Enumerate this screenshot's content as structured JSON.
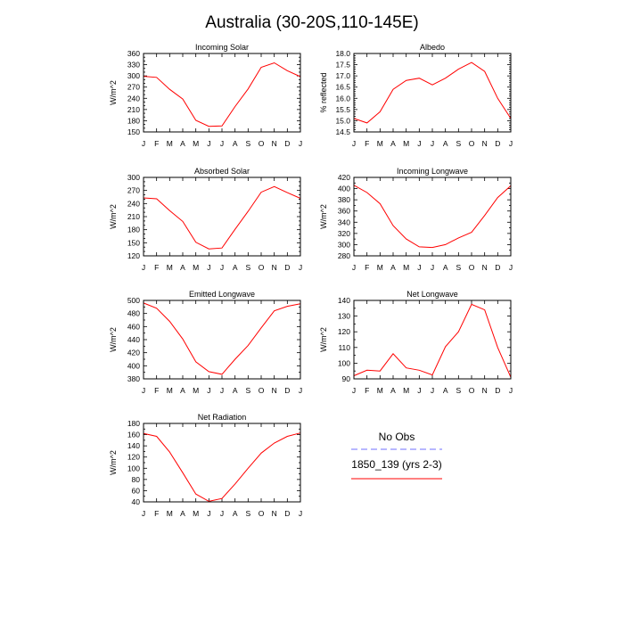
{
  "figure": {
    "title": "Australia (30-20S,110-145E)"
  },
  "colors": {
    "model": "#ff0000",
    "obs": "#6f6fff"
  },
  "legend": {
    "obs_label": "No Obs",
    "model_label": "1850_139 (yrs 2-3)",
    "placement": "bottom-right"
  },
  "chart_data": [
    {
      "type": "line",
      "title": "Incoming Solar",
      "ylabel": "W/m^2",
      "categories": [
        "J",
        "F",
        "M",
        "A",
        "M",
        "J",
        "J",
        "A",
        "S",
        "O",
        "N",
        "D",
        "J"
      ],
      "ylim": [
        150,
        360
      ],
      "yticks": [
        150,
        160,
        170,
        180,
        190,
        200,
        210,
        220,
        230,
        240,
        250,
        260,
        270,
        280,
        290,
        300,
        310,
        320,
        330,
        340,
        350,
        360
      ],
      "ytick_labels": [
        "150",
        "180",
        "210",
        "240",
        "270",
        "300",
        "330",
        "360"
      ],
      "series": [
        {
          "name": "1850_139 (yrs 2-3)",
          "values": [
            299,
            296,
            264,
            238,
            181,
            165,
            166,
            218,
            265,
            323,
            335,
            314,
            298
          ]
        }
      ]
    },
    {
      "type": "line",
      "title": "Albedo",
      "ylabel": "% reflected",
      "categories": [
        "J",
        "F",
        "M",
        "A",
        "M",
        "J",
        "J",
        "A",
        "S",
        "O",
        "N",
        "D",
        "J"
      ],
      "ylim": [
        14.5,
        18.0
      ],
      "yticks": [
        14.5,
        14.6,
        14.7,
        14.8,
        14.9,
        15.0,
        15.1,
        15.2,
        15.3,
        15.4,
        15.5,
        15.6,
        15.7,
        15.8,
        15.9,
        16.0,
        16.1,
        16.2,
        16.3,
        16.4,
        16.5,
        16.6,
        16.7,
        16.8,
        16.9,
        17.0,
        17.1,
        17.2,
        17.3,
        17.4,
        17.5,
        17.6,
        17.7,
        17.8,
        17.9,
        18.0
      ],
      "ytick_labels": [
        "14.5",
        "15.0",
        "15.5",
        "16.0",
        "16.5",
        "17.0",
        "17.5",
        "18.0"
      ],
      "series": [
        {
          "name": "1850_139 (yrs 2-3)",
          "values": [
            15.1,
            14.9,
            15.4,
            16.4,
            16.8,
            16.9,
            16.6,
            16.9,
            17.3,
            17.6,
            17.2,
            16.0,
            15.1
          ]
        }
      ]
    },
    {
      "type": "line",
      "title": "Absorbed Solar",
      "ylabel": "W/m^2",
      "categories": [
        "J",
        "F",
        "M",
        "A",
        "M",
        "J",
        "J",
        "A",
        "S",
        "O",
        "N",
        "D",
        "J"
      ],
      "ylim": [
        120,
        300
      ],
      "yticks": [
        120,
        130,
        140,
        150,
        160,
        170,
        180,
        190,
        200,
        210,
        220,
        230,
        240,
        250,
        260,
        270,
        280,
        290,
        300
      ],
      "ytick_labels": [
        "120",
        "150",
        "180",
        "210",
        "240",
        "270",
        "300"
      ],
      "series": [
        {
          "name": "1850_139 (yrs 2-3)",
          "values": [
            253,
            251,
            224,
            199,
            151,
            136,
            138,
            181,
            222,
            266,
            279,
            265,
            252
          ]
        }
      ]
    },
    {
      "type": "line",
      "title": "Incoming Longwave",
      "ylabel": "W/m^2",
      "categories": [
        "J",
        "F",
        "M",
        "A",
        "M",
        "J",
        "J",
        "A",
        "S",
        "O",
        "N",
        "D",
        "J"
      ],
      "ylim": [
        280,
        420
      ],
      "yticks": [
        280,
        290,
        300,
        310,
        320,
        330,
        340,
        350,
        360,
        370,
        380,
        390,
        400,
        410,
        420
      ],
      "ytick_labels": [
        "280",
        "300",
        "320",
        "340",
        "360",
        "380",
        "400",
        "420"
      ],
      "series": [
        {
          "name": "1850_139 (yrs 2-3)",
          "values": [
            406,
            393,
            373,
            334,
            310,
            296,
            295,
            300,
            312,
            322,
            352,
            384,
            405
          ]
        }
      ]
    },
    {
      "type": "line",
      "title": "Emitted Longwave",
      "ylabel": "W/m^2",
      "categories": [
        "J",
        "F",
        "M",
        "A",
        "M",
        "J",
        "J",
        "A",
        "S",
        "O",
        "N",
        "D",
        "J"
      ],
      "ylim": [
        380,
        500
      ],
      "yticks": [
        380,
        390,
        400,
        410,
        420,
        430,
        440,
        450,
        460,
        470,
        480,
        490,
        500
      ],
      "ytick_labels": [
        "380",
        "400",
        "420",
        "440",
        "460",
        "480",
        "500"
      ],
      "series": [
        {
          "name": "1850_139 (yrs 2-3)",
          "values": [
            496,
            488,
            468,
            441,
            406,
            391,
            387,
            410,
            431,
            458,
            484,
            491,
            495
          ]
        }
      ]
    },
    {
      "type": "line",
      "title": "Net Longwave",
      "ylabel": "W/m^2",
      "categories": [
        "J",
        "F",
        "M",
        "A",
        "M",
        "J",
        "J",
        "A",
        "S",
        "O",
        "N",
        "D",
        "J"
      ],
      "ylim": [
        90,
        140
      ],
      "yticks": [
        90,
        95,
        100,
        105,
        110,
        115,
        120,
        125,
        130,
        135,
        140
      ],
      "ytick_labels": [
        "90",
        "100",
        "110",
        "120",
        "130",
        "140"
      ],
      "series": [
        {
          "name": "1850_139 (yrs 2-3)",
          "values": [
            92,
            95.5,
            95,
            106,
            97,
            95.5,
            92.5,
            110.5,
            120,
            137.5,
            134,
            110,
            91
          ]
        }
      ]
    },
    {
      "type": "line",
      "title": "Net Radiation",
      "ylabel": "W/m^2",
      "categories": [
        "J",
        "F",
        "M",
        "A",
        "M",
        "J",
        "J",
        "A",
        "S",
        "O",
        "N",
        "D",
        "J"
      ],
      "ylim": [
        40,
        180
      ],
      "yticks": [
        40,
        50,
        60,
        70,
        80,
        90,
        100,
        110,
        120,
        130,
        140,
        150,
        160,
        170,
        180
      ],
      "ytick_labels": [
        "40",
        "60",
        "80",
        "100",
        "120",
        "140",
        "160",
        "180"
      ],
      "series": [
        {
          "name": "1850_139 (yrs 2-3)",
          "values": [
            162,
            157,
            129,
            92,
            54,
            41,
            46,
            72,
            100,
            127,
            145,
            157,
            163
          ]
        }
      ]
    }
  ]
}
